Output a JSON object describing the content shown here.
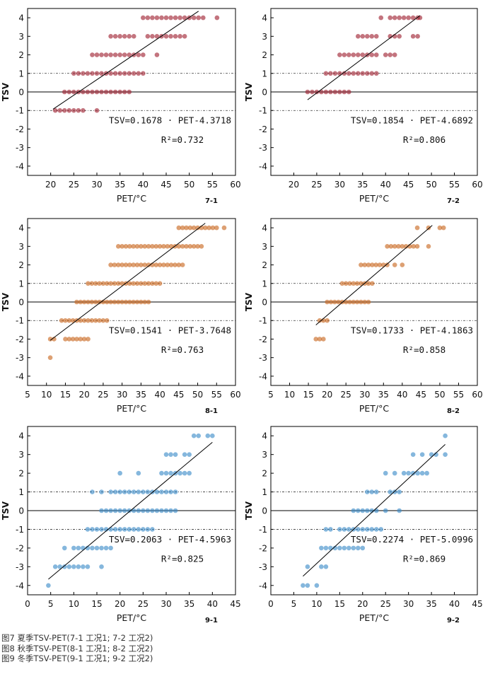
{
  "captions": [
    "图7 夏季TSV-PET(7-1 工况1; 7-2 工况2)",
    "图8 秋季TSV-PET(8-1 工况1; 8-2 工况2)",
    "图9 冬季TSV-PET(9-1 工况1; 9-2 工况2)"
  ],
  "chart_data": [
    {
      "id": "7-1",
      "type": "scatter",
      "panel_label": "7-1",
      "xlabel": "PET/°C",
      "ylabel": "TSV",
      "xlim": [
        15,
        60
      ],
      "ylim": [
        -4.5,
        4.5
      ],
      "xticks": [
        20,
        25,
        30,
        35,
        40,
        45,
        50,
        55,
        60
      ],
      "yticks": [
        -4,
        -3,
        -2,
        -1,
        0,
        1,
        2,
        3,
        4
      ],
      "color": "#9e1e2e",
      "equation": "TSV=0.1678 · PET-4.3718",
      "r2_label": "R²=0.732",
      "fit": {
        "slope": 0.1678,
        "intercept": -4.3718,
        "x_range": [
          20.5,
          52
        ]
      },
      "series": [
        {
          "tsv": 4,
          "pet": [
            40,
            41,
            42,
            43,
            44,
            45,
            46,
            47,
            48,
            49,
            50,
            51,
            52,
            53,
            56
          ]
        },
        {
          "tsv": 3,
          "pet": [
            33,
            34,
            35,
            36,
            37,
            38,
            41,
            42,
            43,
            44,
            45,
            46,
            47,
            48,
            49
          ]
        },
        {
          "tsv": 2,
          "pet": [
            29,
            30,
            31,
            32,
            33,
            34,
            35,
            36,
            37,
            38,
            39,
            40,
            43
          ]
        },
        {
          "tsv": 1,
          "pet": [
            25,
            26,
            27,
            28,
            29,
            30,
            31,
            32,
            33,
            34,
            35,
            36,
            37,
            38,
            39,
            40
          ]
        },
        {
          "tsv": 0,
          "pet": [
            23,
            24,
            25,
            26,
            27,
            28,
            29,
            30,
            31,
            32,
            33,
            34,
            35,
            36,
            37
          ]
        },
        {
          "tsv": -1,
          "pet": [
            21,
            22,
            23,
            24,
            25,
            26,
            27,
            30
          ]
        }
      ]
    },
    {
      "id": "7-2",
      "type": "scatter",
      "panel_label": "7-2",
      "xlabel": "PET/°C",
      "ylabel": "TSV",
      "xlim": [
        15,
        60
      ],
      "ylim": [
        -4.5,
        4.5
      ],
      "xticks": [
        20,
        25,
        30,
        35,
        40,
        45,
        50,
        55,
        60
      ],
      "yticks": [
        -4,
        -3,
        -2,
        -1,
        0,
        1,
        2,
        3,
        4
      ],
      "color": "#9e1e2e",
      "equation": "TSV=0.1854 · PET-4.6892",
      "r2_label": "R²=0.806",
      "fit": {
        "slope": 0.1854,
        "intercept": -4.6892,
        "x_range": [
          23,
          47.5
        ]
      },
      "series": [
        {
          "tsv": 4,
          "pet": [
            39,
            41,
            42,
            43,
            44,
            45,
            46,
            47,
            47.5
          ]
        },
        {
          "tsv": 3,
          "pet": [
            34,
            35,
            36,
            37,
            38,
            41,
            42,
            43,
            46,
            47
          ]
        },
        {
          "tsv": 2,
          "pet": [
            30,
            31,
            32,
            33,
            34,
            35,
            36,
            37,
            38,
            40,
            41,
            42
          ]
        },
        {
          "tsv": 1,
          "pet": [
            27,
            28,
            29,
            30,
            31,
            32,
            33,
            34,
            35,
            36,
            37,
            38
          ]
        },
        {
          "tsv": 0,
          "pet": [
            23,
            24,
            25,
            26,
            27,
            28,
            29,
            30,
            31,
            32
          ]
        }
      ]
    },
    {
      "id": "8-1",
      "type": "scatter",
      "panel_label": "8-1",
      "xlabel": "PET/°C",
      "ylabel": "TSV",
      "xlim": [
        5,
        60
      ],
      "ylim": [
        -4.5,
        4.5
      ],
      "xticks": [
        5,
        10,
        15,
        20,
        25,
        30,
        35,
        40,
        45,
        50,
        55,
        60
      ],
      "yticks": [
        -4,
        -3,
        -2,
        -1,
        0,
        1,
        2,
        3,
        4
      ],
      "color": "#c8661d",
      "equation": "TSV=0.1541 · PET-3.7648",
      "r2_label": "R²=0.763",
      "fit": {
        "slope": 0.1541,
        "intercept": -3.7648,
        "x_range": [
          11,
          52
        ]
      },
      "series": [
        {
          "tsv": 4,
          "pet": [
            45,
            46,
            47,
            48,
            49,
            50,
            51,
            52,
            53,
            54,
            55,
            57
          ]
        },
        {
          "tsv": 3,
          "pet": [
            29,
            30,
            31,
            32,
            33,
            34,
            35,
            36,
            37,
            38,
            39,
            40,
            41,
            42,
            43,
            44,
            45,
            46,
            47,
            48,
            49,
            50,
            51
          ]
        },
        {
          "tsv": 2,
          "pet": [
            27,
            28,
            29,
            30,
            31,
            32,
            33,
            34,
            35,
            36,
            37,
            38,
            39,
            40,
            41,
            42,
            43,
            44,
            45,
            46
          ]
        },
        {
          "tsv": 1,
          "pet": [
            21,
            22,
            23,
            24,
            25,
            26,
            27,
            28,
            29,
            30,
            31,
            32,
            33,
            34,
            35,
            36,
            37,
            38,
            39,
            40
          ]
        },
        {
          "tsv": 0,
          "pet": [
            18,
            19,
            20,
            21,
            22,
            23,
            24,
            25,
            26,
            27,
            28,
            29,
            30,
            31,
            32,
            33,
            34,
            35,
            36,
            37
          ]
        },
        {
          "tsv": -1,
          "pet": [
            14,
            15,
            16,
            17,
            18,
            19,
            20,
            21,
            22,
            23,
            24,
            25,
            26
          ]
        },
        {
          "tsv": -2,
          "pet": [
            11,
            12,
            15,
            16,
            17,
            18,
            19,
            20,
            21
          ]
        },
        {
          "tsv": -3,
          "pet": [
            11
          ]
        }
      ]
    },
    {
      "id": "8-2",
      "type": "scatter",
      "panel_label": "8-2",
      "xlabel": "PET/°C",
      "ylabel": "TSV",
      "xlim": [
        5,
        60
      ],
      "ylim": [
        -4.5,
        4.5
      ],
      "xticks": [
        5,
        10,
        15,
        20,
        25,
        30,
        35,
        40,
        45,
        50,
        55,
        60
      ],
      "yticks": [
        -4,
        -3,
        -2,
        -1,
        0,
        1,
        2,
        3,
        4
      ],
      "color": "#c8661d",
      "equation": "TSV=0.1733 · PET-4.1863",
      "r2_label": "R²=0.858",
      "fit": {
        "slope": 0.1733,
        "intercept": -4.1863,
        "x_range": [
          17,
          48
        ]
      },
      "series": [
        {
          "tsv": 4,
          "pet": [
            44,
            47,
            50,
            51
          ]
        },
        {
          "tsv": 3,
          "pet": [
            36,
            37,
            38,
            39,
            40,
            41,
            42,
            43,
            44,
            47
          ]
        },
        {
          "tsv": 2,
          "pet": [
            29,
            30,
            31,
            32,
            33,
            34,
            35,
            36,
            38,
            40
          ]
        },
        {
          "tsv": 1,
          "pet": [
            24,
            25,
            26,
            27,
            28,
            29,
            30,
            31,
            32
          ]
        },
        {
          "tsv": 0,
          "pet": [
            20,
            21,
            22,
            23,
            24,
            25,
            26,
            27,
            28,
            29,
            30,
            31
          ]
        },
        {
          "tsv": -1,
          "pet": [
            18,
            19,
            20
          ]
        },
        {
          "tsv": -2,
          "pet": [
            17,
            18,
            19
          ]
        }
      ]
    },
    {
      "id": "9-1",
      "type": "scatter",
      "panel_label": "9-1",
      "xlabel": "PET/°C",
      "ylabel": "TSV",
      "xlim": [
        0,
        45
      ],
      "ylim": [
        -4.5,
        4.5
      ],
      "xticks": [
        0,
        5,
        10,
        15,
        20,
        25,
        30,
        35,
        40,
        45
      ],
      "yticks": [
        -4,
        -3,
        -2,
        -1,
        0,
        1,
        2,
        3,
        4
      ],
      "color": "#3a8bc8",
      "equation": "TSV=0.2063 · PET-4.5963",
      "r2_label": "R²=0.825",
      "fit": {
        "slope": 0.2063,
        "intercept": -4.5963,
        "x_range": [
          4.5,
          40
        ]
      },
      "series": [
        {
          "tsv": 4,
          "pet": [
            36,
            37,
            39,
            40
          ]
        },
        {
          "tsv": 3,
          "pet": [
            30,
            31,
            32,
            34,
            35
          ]
        },
        {
          "tsv": 2,
          "pet": [
            20,
            24,
            29,
            30,
            31,
            32,
            33,
            34,
            35
          ]
        },
        {
          "tsv": 1,
          "pet": [
            14,
            16,
            18,
            19,
            20,
            21,
            22,
            23,
            24,
            25,
            26,
            27,
            28,
            29,
            30,
            31,
            32
          ]
        },
        {
          "tsv": 0,
          "pet": [
            16,
            17,
            18,
            19,
            20,
            21,
            22,
            23,
            24,
            25,
            26,
            27,
            28,
            29,
            30,
            31,
            32
          ]
        },
        {
          "tsv": -1,
          "pet": [
            13,
            14,
            15,
            16,
            17,
            18,
            19,
            20,
            21,
            22,
            23,
            24,
            25,
            26,
            27
          ]
        },
        {
          "tsv": -2,
          "pet": [
            8,
            10,
            11,
            12,
            13,
            14,
            15,
            16,
            17,
            18
          ]
        },
        {
          "tsv": -3,
          "pet": [
            6,
            7,
            8,
            9,
            10,
            11,
            12,
            13,
            16
          ]
        },
        {
          "tsv": -4,
          "pet": [
            4.5
          ]
        }
      ]
    },
    {
      "id": "9-2",
      "type": "scatter",
      "panel_label": "9-2",
      "xlabel": "PET/°C",
      "ylabel": "TSV",
      "xlim": [
        0,
        45
      ],
      "ylim": [
        -4.5,
        4.5
      ],
      "xticks": [
        0,
        5,
        10,
        15,
        20,
        25,
        30,
        35,
        40,
        45
      ],
      "yticks": [
        -4,
        -3,
        -2,
        -1,
        0,
        1,
        2,
        3,
        4
      ],
      "color": "#3a8bc8",
      "equation": "TSV=0.2274 · PET-5.0996",
      "r2_label": "R²=0.869",
      "fit": {
        "slope": 0.2274,
        "intercept": -5.0996,
        "x_range": [
          7,
          38
        ]
      },
      "series": [
        {
          "tsv": 4,
          "pet": [
            38
          ]
        },
        {
          "tsv": 3,
          "pet": [
            31,
            33,
            35,
            36,
            38
          ]
        },
        {
          "tsv": 2,
          "pet": [
            25,
            27,
            29,
            30,
            31,
            32,
            33,
            34
          ]
        },
        {
          "tsv": 1,
          "pet": [
            21,
            22,
            23,
            26,
            27,
            28
          ]
        },
        {
          "tsv": 0,
          "pet": [
            18,
            19,
            20,
            21,
            22,
            23,
            25,
            28
          ]
        },
        {
          "tsv": -1,
          "pet": [
            12,
            13,
            15,
            16,
            17,
            18,
            19,
            20,
            21,
            22,
            23,
            24
          ]
        },
        {
          "tsv": -2,
          "pet": [
            11,
            12,
            13,
            14,
            15,
            16,
            17,
            18,
            19,
            20
          ]
        },
        {
          "tsv": -3,
          "pet": [
            8,
            11,
            12
          ]
        },
        {
          "tsv": -4,
          "pet": [
            7,
            8,
            10
          ]
        }
      ]
    }
  ]
}
